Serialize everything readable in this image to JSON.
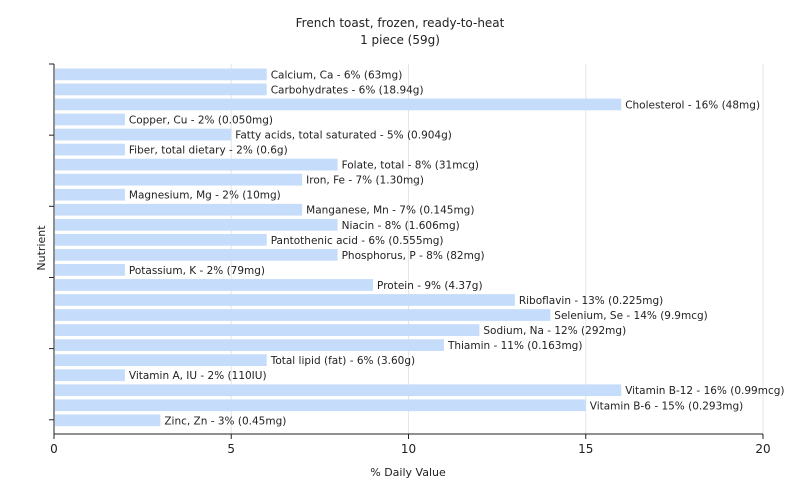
{
  "chart_data": {
    "type": "bar",
    "orientation": "horizontal",
    "title": "French toast, frozen, ready-to-heat",
    "subtitle": "1 piece (59g)",
    "xlabel": "% Daily Value",
    "ylabel": "Nutrient",
    "xlim": [
      0,
      20
    ],
    "xticks": [
      0,
      5,
      10,
      15,
      20
    ],
    "grid": true,
    "bar_color": "#c5dcfa",
    "bars": [
      {
        "label": "Calcium, Ca - 6% (63mg)",
        "value": 6
      },
      {
        "label": "Carbohydrates - 6% (18.94g)",
        "value": 6
      },
      {
        "label": "Cholesterol - 16% (48mg)",
        "value": 16
      },
      {
        "label": "Copper, Cu - 2% (0.050mg)",
        "value": 2
      },
      {
        "label": "Fatty acids, total saturated - 5% (0.904g)",
        "value": 5
      },
      {
        "label": "Fiber, total dietary - 2% (0.6g)",
        "value": 2
      },
      {
        "label": "Folate, total - 8% (31mcg)",
        "value": 8
      },
      {
        "label": "Iron, Fe - 7% (1.30mg)",
        "value": 7
      },
      {
        "label": "Magnesium, Mg - 2% (10mg)",
        "value": 2
      },
      {
        "label": "Manganese, Mn - 7% (0.145mg)",
        "value": 7
      },
      {
        "label": "Niacin - 8% (1.606mg)",
        "value": 8
      },
      {
        "label": "Pantothenic acid - 6% (0.555mg)",
        "value": 6
      },
      {
        "label": "Phosphorus, P - 8% (82mg)",
        "value": 8
      },
      {
        "label": "Potassium, K - 2% (79mg)",
        "value": 2
      },
      {
        "label": "Protein - 9% (4.37g)",
        "value": 9
      },
      {
        "label": "Riboflavin - 13% (0.225mg)",
        "value": 13
      },
      {
        "label": "Selenium, Se - 14% (9.9mcg)",
        "value": 14
      },
      {
        "label": "Sodium, Na - 12% (292mg)",
        "value": 12
      },
      {
        "label": "Thiamin - 11% (0.163mg)",
        "value": 11
      },
      {
        "label": "Total lipid (fat) - 6% (3.60g)",
        "value": 6
      },
      {
        "label": "Vitamin A, IU - 2% (110IU)",
        "value": 2
      },
      {
        "label": "Vitamin B-12 - 16% (0.99mcg)",
        "value": 16
      },
      {
        "label": "Vitamin B-6 - 15% (0.293mg)",
        "value": 15
      },
      {
        "label": "Zinc, Zn - 3% (0.45mg)",
        "value": 3
      }
    ]
  }
}
